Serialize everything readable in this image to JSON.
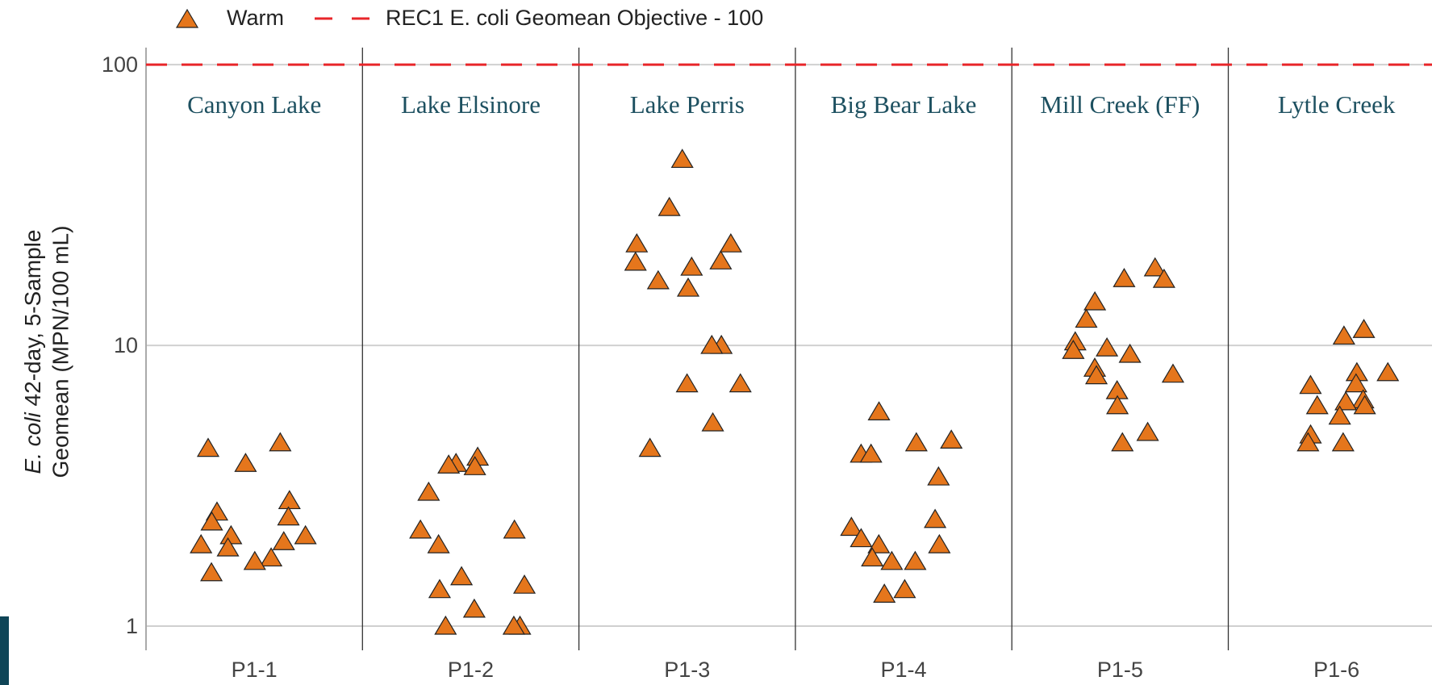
{
  "chart_data": {
    "type": "strip",
    "legend": {
      "series_name": "Warm",
      "color": "#e5761c"
    },
    "reference_line": {
      "label": "REC1 E. coli Geomean Objective - 100",
      "value": 100,
      "color": "#e8262a"
    },
    "y_label": {
      "italic": "E. coli",
      "line1": "42-day, 5-Sample",
      "line2": "Geomean (MPN/100 mL)"
    },
    "log_y": true,
    "ylim": [
      0.82,
      115
    ],
    "yticks": [
      1,
      10,
      100
    ],
    "grid": true,
    "categories": [
      "P1-1",
      "P1-2",
      "P1-3",
      "P1-4",
      "P1-5",
      "P1-6"
    ],
    "panel_labels": [
      "Canyon Lake",
      "Lake Elsinore",
      "Lake Perris",
      "Big Bear Lake",
      "Mill Creek (FF)",
      "Lytle Creek"
    ],
    "values": [
      [
        4.5,
        4.3,
        3.8,
        2.8,
        2.55,
        2.45,
        2.35,
        2.1,
        2.1,
        2.0,
        1.95,
        1.9,
        1.75,
        1.7,
        1.55
      ],
      [
        4.0,
        3.8,
        3.75,
        3.7,
        3.0,
        2.2,
        2.2,
        1.95,
        1.5,
        1.4,
        1.35,
        1.15,
        1.0,
        1.0,
        1.0
      ],
      [
        46,
        31,
        23,
        23,
        20,
        19.8,
        19,
        17,
        16,
        10,
        10,
        7.3,
        7.3,
        5.3,
        4.3
      ],
      [
        5.8,
        4.6,
        4.5,
        4.1,
        4.1,
        3.4,
        2.4,
        2.25,
        2.05,
        1.95,
        1.95,
        1.75,
        1.7,
        1.7,
        1.35,
        1.3
      ],
      [
        18.9,
        17.3,
        17.2,
        14.3,
        12.4,
        10.3,
        9.8,
        9.6,
        9.3,
        8.3,
        7.9,
        7.8,
        6.9,
        6.1,
        4.9,
        4.5
      ],
      [
        11.4,
        10.8,
        8.0,
        8.0,
        7.3,
        7.2,
        6.4,
        6.3,
        6.1,
        6.1,
        5.6,
        4.8,
        4.5,
        4.5
      ]
    ]
  }
}
